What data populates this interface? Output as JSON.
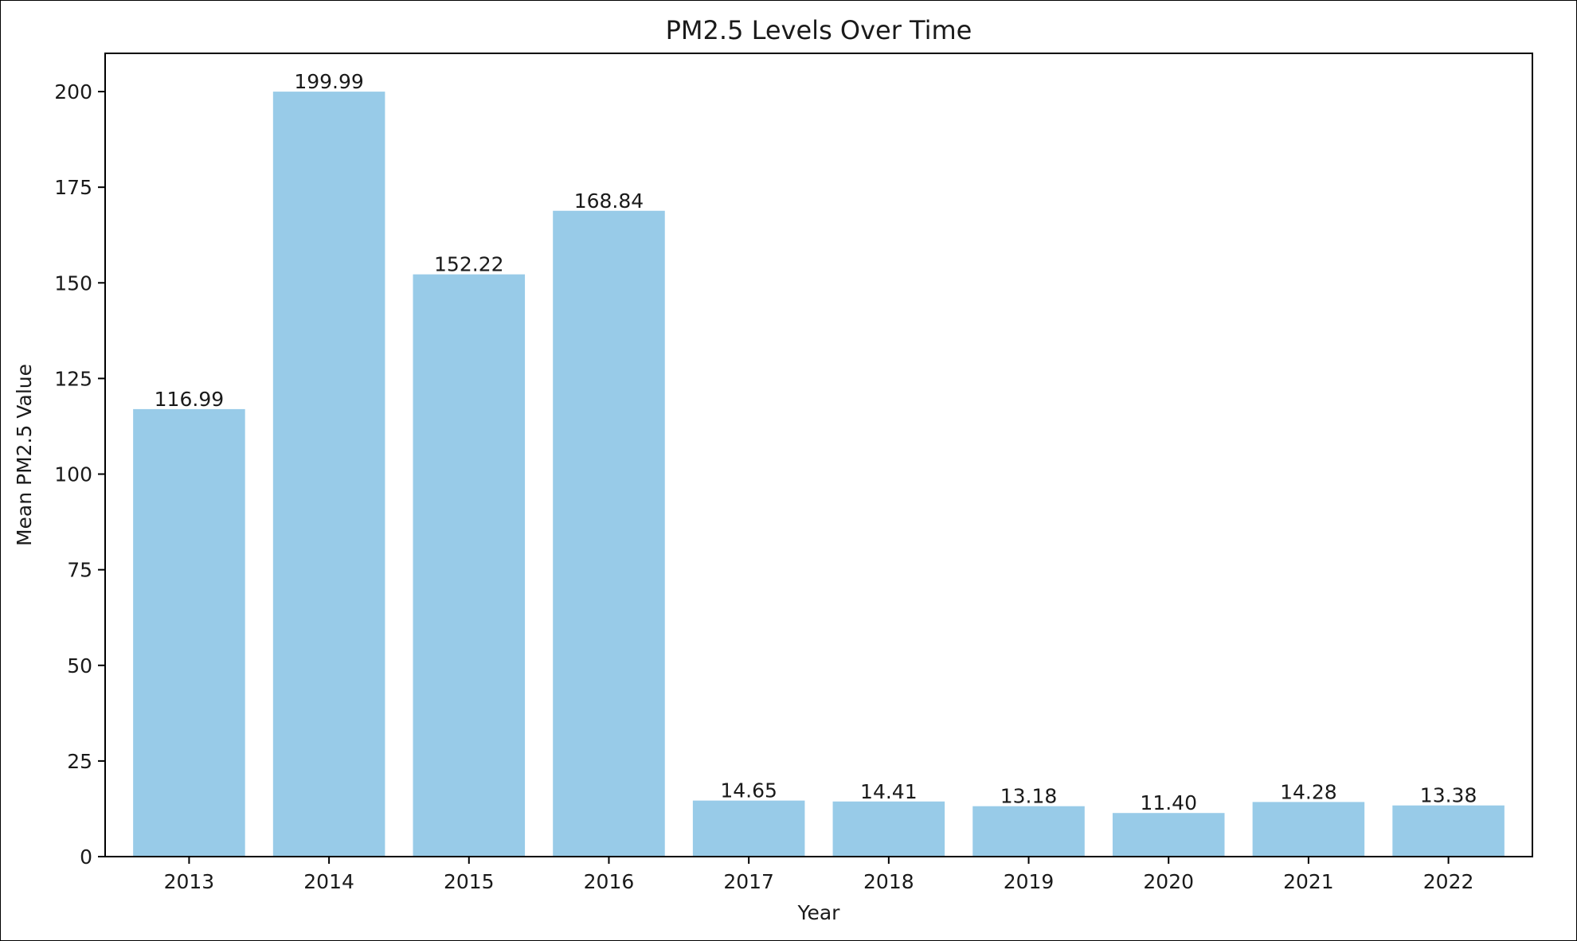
{
  "chart_data": {
    "type": "bar",
    "title": "PM2.5 Levels Over Time",
    "xlabel": "Year",
    "ylabel": "Mean PM2.5 Value",
    "categories": [
      "2013",
      "2014",
      "2015",
      "2016",
      "2017",
      "2018",
      "2019",
      "2020",
      "2021",
      "2022"
    ],
    "values": [
      116.99,
      199.99,
      152.22,
      168.84,
      14.65,
      14.41,
      13.18,
      11.4,
      14.28,
      13.38
    ],
    "data_labels": [
      "116.99",
      "199.99",
      "152.22",
      "168.84",
      "14.65",
      "14.41",
      "13.18",
      "11.40",
      "14.28",
      "13.38"
    ],
    "ylim": [
      0,
      210
    ],
    "yticks": [
      0,
      25,
      50,
      75,
      100,
      125,
      150,
      175,
      200
    ],
    "grid": false,
    "legend": "none",
    "bar_color": "#98cbe8"
  }
}
